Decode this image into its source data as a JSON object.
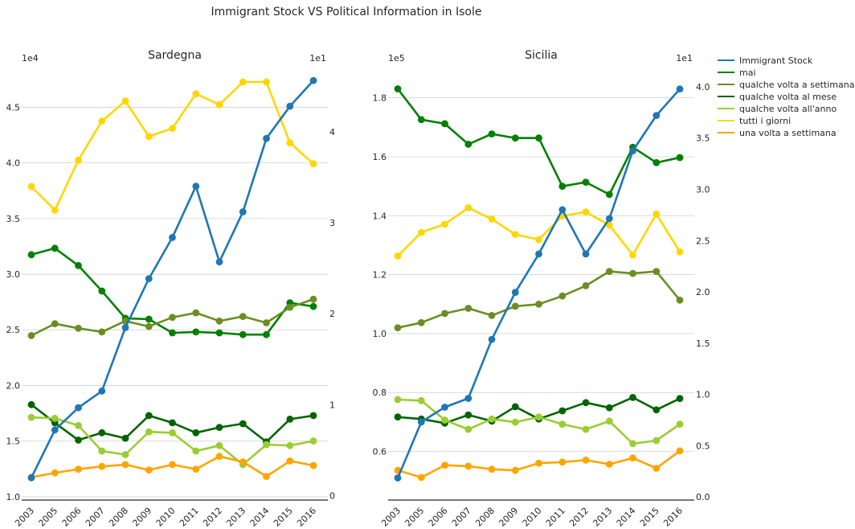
{
  "chart_data": {
    "type": "line",
    "title": "Immigrant Stock VS Political Information in Isole",
    "categories": [
      "2003",
      "2005",
      "2006",
      "2007",
      "2008",
      "2009",
      "2010",
      "2011",
      "2012",
      "2013",
      "2014",
      "2015",
      "2016"
    ],
    "legend": {
      "placement": "right",
      "entries": [
        {
          "name": "Immigrant Stock",
          "color": "#1f77b4"
        },
        {
          "name": "mai",
          "color": "#008000"
        },
        {
          "name": "qualche volta a settimana",
          "color": "#6b8e23"
        },
        {
          "name": "qualche volta al mese",
          "color": "#006400"
        },
        {
          "name": "qualche volta all'anno",
          "color": "#9acd32"
        },
        {
          "name": "tutti i giorni",
          "color": "#ffd700"
        },
        {
          "name": "una volta a settimana",
          "color": "#ffa500"
        }
      ]
    },
    "panels": [
      {
        "title": "Sardegna",
        "left_axis": {
          "offset_label": "1e4",
          "ticks": [
            1.0,
            1.5,
            2.0,
            2.5,
            3.0,
            3.5,
            4.0,
            4.5
          ],
          "tick_labels": [
            "1.0",
            "1.5",
            "2.0",
            "2.5",
            "3.0",
            "3.5",
            "4.0",
            "4.5"
          ],
          "range": [
            0.97,
            4.85
          ]
        },
        "right_axis": {
          "offset_label": "1e1",
          "ticks": [
            0,
            1,
            2,
            3,
            4
          ],
          "tick_labels": [
            "0",
            "1",
            "2",
            "3",
            "4"
          ],
          "range": [
            -0.05,
            4.7
          ]
        },
        "series": [
          {
            "name": "Immigrant Stock",
            "axis": "left",
            "color": "#1f77b4",
            "values": [
              1.17,
              1.6,
              1.8,
              1.95,
              2.52,
              2.96,
              3.33,
              3.79,
              3.11,
              3.56,
              4.22,
              4.51,
              4.74
            ]
          },
          {
            "name": "mai",
            "axis": "right",
            "color": "#008000",
            "values": [
              2.65,
              2.72,
              2.53,
              2.25,
              1.95,
              1.94,
              1.79,
              1.8,
              1.79,
              1.77,
              1.77,
              2.12,
              2.08
            ]
          },
          {
            "name": "qualche volta a settimana",
            "axis": "right",
            "color": "#6b8e23",
            "values": [
              1.76,
              1.89,
              1.84,
              1.8,
              1.92,
              1.86,
              1.96,
              2.01,
              1.92,
              1.97,
              1.9,
              2.07,
              2.16
            ]
          },
          {
            "name": "qualche volta al mese",
            "axis": "right",
            "color": "#006400",
            "values": [
              1.0,
              0.8,
              0.61,
              0.69,
              0.63,
              0.88,
              0.8,
              0.69,
              0.75,
              0.79,
              0.59,
              0.84,
              0.88
            ]
          },
          {
            "name": "qualche volta all'anno",
            "axis": "right",
            "color": "#9acd32",
            "values": [
              0.86,
              0.85,
              0.77,
              0.49,
              0.45,
              0.7,
              0.69,
              0.49,
              0.55,
              0.34,
              0.56,
              0.55,
              0.6
            ]
          },
          {
            "name": "tutti i giorni",
            "axis": "right",
            "color": "#ffd700",
            "values": [
              3.4,
              3.14,
              3.69,
              4.12,
              4.34,
              3.95,
              4.04,
              4.42,
              4.3,
              4.55,
              4.55,
              3.88,
              3.65
            ]
          },
          {
            "name": "una volta a settimana",
            "axis": "right",
            "color": "#ffa500",
            "values": [
              0.2,
              0.25,
              0.29,
              0.32,
              0.34,
              0.28,
              0.34,
              0.29,
              0.43,
              0.37,
              0.21,
              0.38,
              0.33
            ]
          }
        ]
      },
      {
        "title": "Sicilia",
        "left_axis": {
          "offset_label": "1e5",
          "ticks": [
            0.6,
            0.8,
            1.0,
            1.2,
            1.4,
            1.6,
            1.8
          ],
          "tick_labels": [
            "0.6",
            "0.8",
            "1.0",
            "1.2",
            "1.4",
            "1.6",
            "1.8"
          ],
          "range": [
            0.435,
            1.9
          ]
        },
        "right_axis": {
          "offset_label": "1e1",
          "ticks": [
            0.0,
            0.5,
            1.0,
            1.5,
            2.0,
            2.5,
            3.0,
            3.5,
            4.0
          ],
          "tick_labels": [
            "0.0",
            "0.5",
            "1.0",
            "1.5",
            "2.0",
            "2.5",
            "3.0",
            "3.5",
            "4.0"
          ],
          "range": [
            -0.03,
            4.18
          ]
        },
        "series": [
          {
            "name": "Immigrant Stock",
            "axis": "left",
            "color": "#1f77b4",
            "values": [
              0.51,
              0.7,
              0.75,
              0.78,
              0.98,
              1.14,
              1.27,
              1.42,
              1.27,
              1.39,
              1.62,
              1.74,
              1.83
            ]
          },
          {
            "name": "mai",
            "axis": "right",
            "color": "#008000",
            "values": [
              3.98,
              3.68,
              3.64,
              3.44,
              3.54,
              3.5,
              3.5,
              3.03,
              3.07,
              2.95,
              3.41,
              3.26,
              3.31
            ]
          },
          {
            "name": "qualche volta a settimana",
            "axis": "right",
            "color": "#6b8e23",
            "values": [
              1.65,
              1.7,
              1.79,
              1.84,
              1.77,
              1.86,
              1.88,
              1.96,
              2.06,
              2.2,
              2.18,
              2.2,
              1.92
            ]
          },
          {
            "name": "qualche volta al mese",
            "axis": "right",
            "color": "#006400",
            "values": [
              0.78,
              0.76,
              0.72,
              0.8,
              0.74,
              0.88,
              0.76,
              0.84,
              0.92,
              0.87,
              0.97,
              0.85,
              0.96
            ]
          },
          {
            "name": "qualche volta all'anno",
            "axis": "right",
            "color": "#9acd32",
            "values": [
              0.95,
              0.94,
              0.75,
              0.66,
              0.76,
              0.73,
              0.78,
              0.71,
              0.66,
              0.74,
              0.52,
              0.55,
              0.71
            ]
          },
          {
            "name": "tutti i giorni",
            "axis": "right",
            "color": "#ffd700",
            "values": [
              2.35,
              2.58,
              2.66,
              2.82,
              2.71,
              2.56,
              2.51,
              2.74,
              2.78,
              2.65,
              2.36,
              2.76,
              2.39
            ]
          },
          {
            "name": "una volta a settimana",
            "axis": "right",
            "color": "#ffa500",
            "values": [
              0.26,
              0.19,
              0.31,
              0.3,
              0.27,
              0.26,
              0.33,
              0.34,
              0.36,
              0.32,
              0.38,
              0.28,
              0.45
            ]
          }
        ]
      }
    ]
  }
}
